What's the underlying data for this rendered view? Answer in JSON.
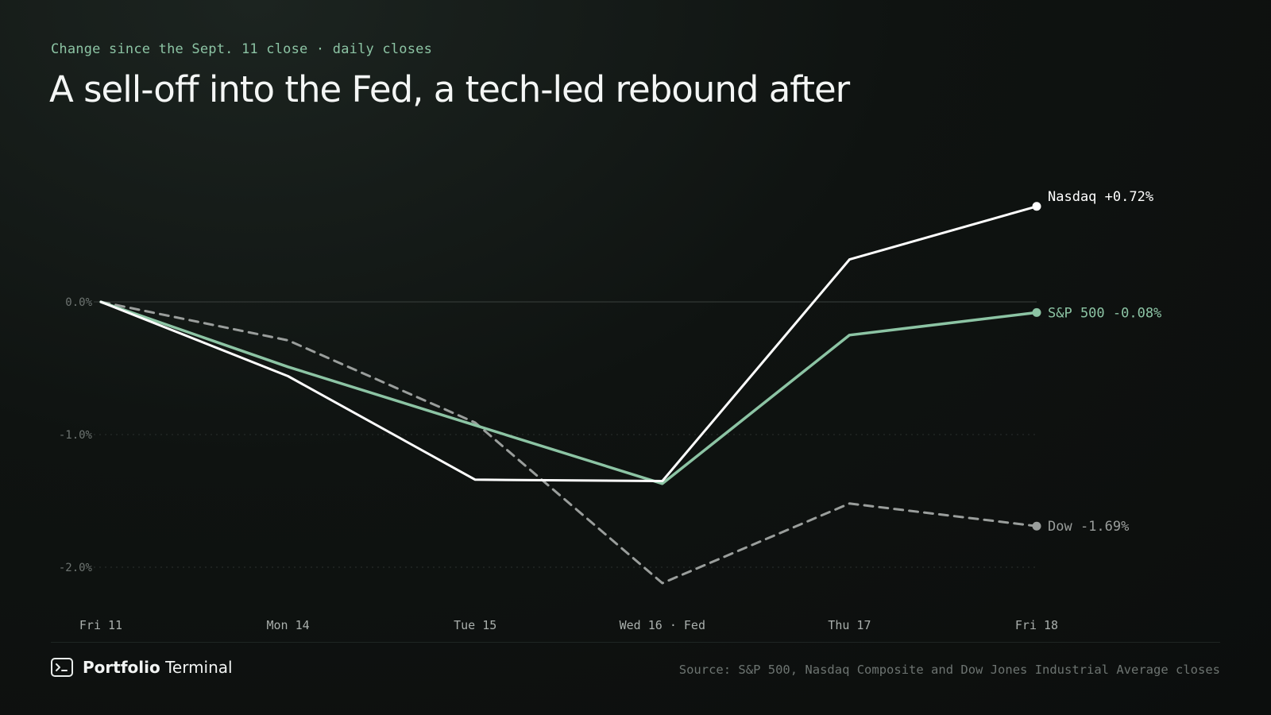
{
  "header": {
    "eyebrow": "Change since the Sept. 11 close · daily closes",
    "title": "A sell-off into the Fed, a tech-led rebound after"
  },
  "footer": {
    "brand_bold": "Portfolio",
    "brand_rest": " Terminal",
    "brand_icon": "terminal-icon",
    "source": "Source: S&P 500, Nasdaq Composite and Dow Jones Industrial Average closes"
  },
  "colors": {
    "nasdaq": "#ffffff",
    "sp500": "#8cc4a4",
    "dow": "#9a9e9c",
    "axis_text": "#6d7471",
    "grid": "#2b302e"
  },
  "chart_data": {
    "type": "line",
    "x": [
      "Fri 11",
      "Mon 14",
      "Tue 15",
      "Wed 16 · Fed",
      "Thu 17",
      "Fri 18"
    ],
    "ylim": [
      -2.1,
      0.8
    ],
    "yticks": [
      0.0,
      -1.0,
      -2.0
    ],
    "ytick_labels": [
      "0.0%",
      "-1.0%",
      "-2.0%"
    ],
    "grid": "horizontal, zero line solid, others dotted",
    "series": [
      {
        "key": "nasdaq",
        "end_label": "Nasdaq +0.72%",
        "style": "solid",
        "values": [
          0.0,
          -0.56,
          -1.34,
          -1.35,
          0.32,
          0.72
        ]
      },
      {
        "key": "sp500",
        "end_label": "S&P 500 -0.08%",
        "style": "solid",
        "values": [
          0.0,
          -0.49,
          -0.93,
          -1.37,
          -0.25,
          -0.08
        ]
      },
      {
        "key": "dow",
        "end_label": "Dow -1.69%",
        "style": "dashed",
        "values": [
          0.0,
          -0.29,
          -0.91,
          -2.12,
          -1.52,
          -1.69
        ]
      }
    ]
  }
}
